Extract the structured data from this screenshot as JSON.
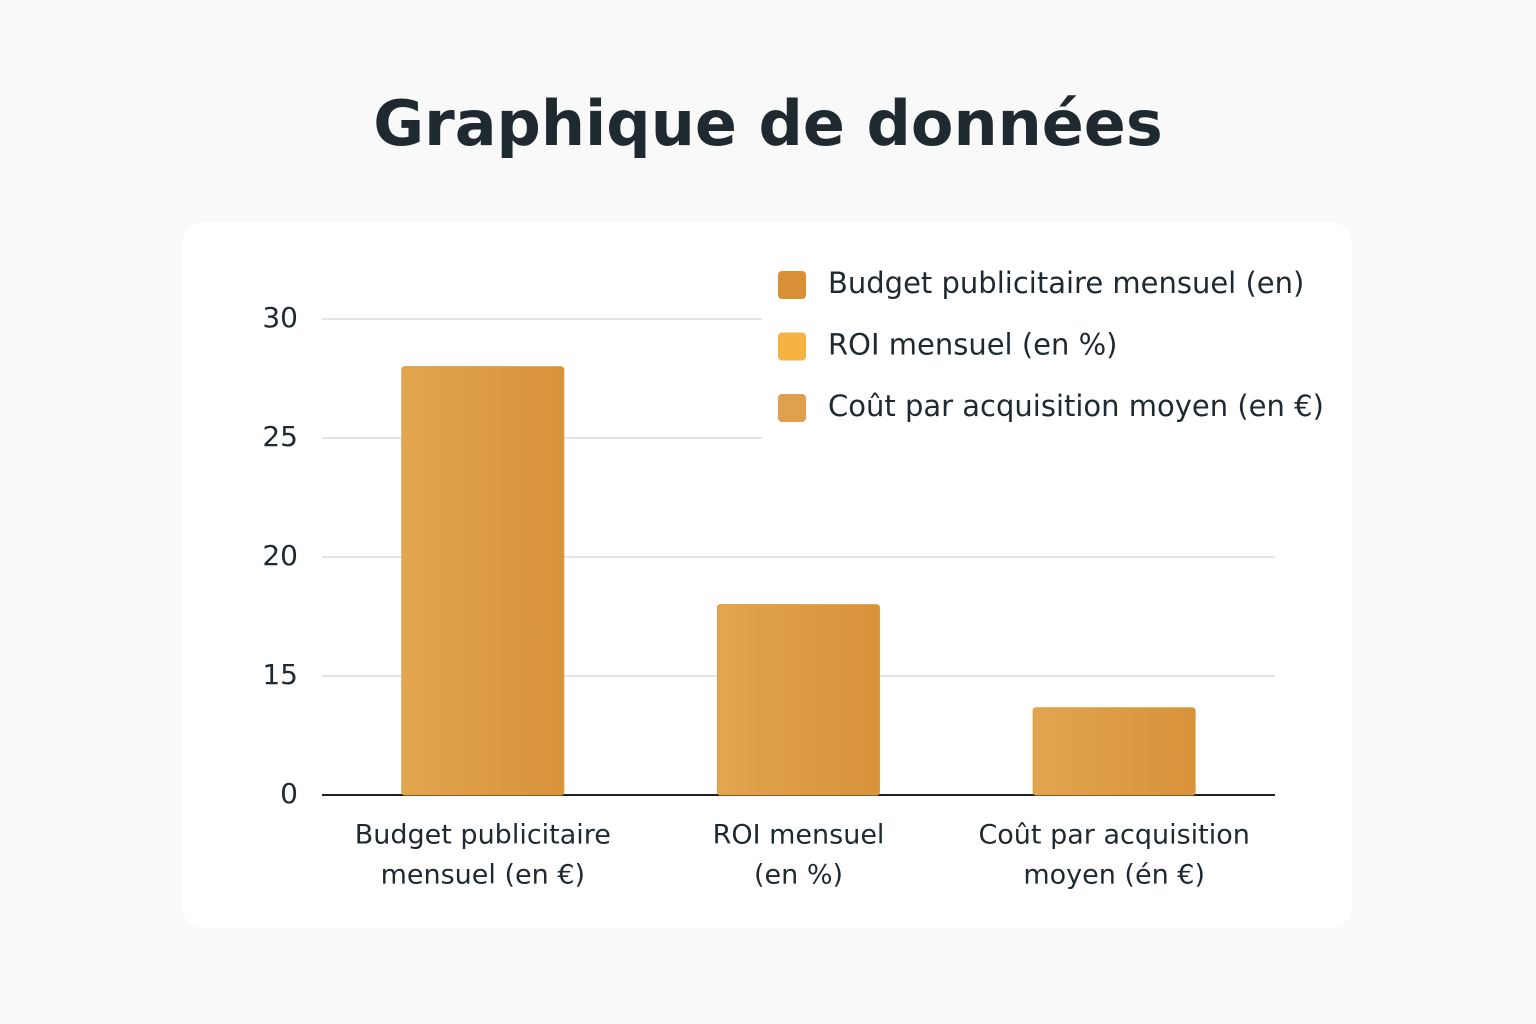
{
  "chart_data": {
    "type": "bar",
    "title": "Graphique de données",
    "categories": [
      [
        "Budget publicitaire",
        "mensuel (en €)"
      ],
      [
        "ROI mensuel",
        "(en %)"
      ],
      [
        "Coût par acquisition",
        "moyen (én €)"
      ]
    ],
    "values": [
      28,
      18,
      11
    ],
    "color": "#dd9a42",
    "ylim": [
      0,
      30
    ],
    "yticks": [
      0,
      15,
      20,
      25,
      30
    ],
    "grid": true,
    "legend": [
      {
        "name": "Budget publicitaire mensuel (en)",
        "color": "#d98f35"
      },
      {
        "name": "ROI mensuel (en %)",
        "color": "#f5b342"
      },
      {
        "name": "Coût par acquisition moyen (en €)",
        "color": "#e0a050"
      }
    ]
  }
}
